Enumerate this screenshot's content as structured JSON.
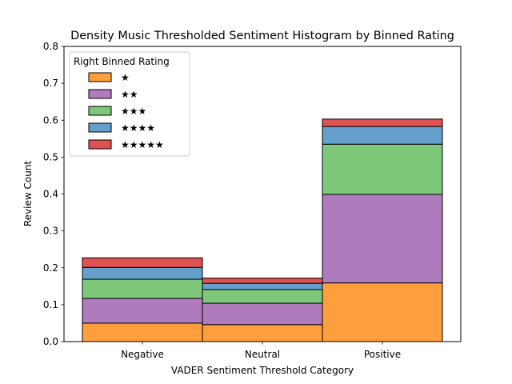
{
  "chart_data": {
    "type": "bar",
    "stacked": true,
    "title": "Density Music Thresholded Sentiment Histogram by Binned Rating",
    "xlabel": "VADER Sentiment Threshold Category",
    "ylabel": "Review Count",
    "ylim": [
      0,
      0.8
    ],
    "yticks": [
      "0.0",
      "0.1",
      "0.2",
      "0.3",
      "0.4",
      "0.5",
      "0.6",
      "0.7",
      "0.8"
    ],
    "categories": [
      "Negative",
      "Neutral",
      "Positive"
    ],
    "legend": {
      "title": "Right Binned Rating",
      "placement": "top-left"
    },
    "grid": false,
    "series": [
      {
        "name": "★",
        "color": "#ff9e3d",
        "values": [
          0.05,
          0.046,
          0.159
        ]
      },
      {
        "name": "★★",
        "color": "#b07bbd",
        "values": [
          0.067,
          0.058,
          0.24
        ]
      },
      {
        "name": "★★★",
        "color": "#7ec87a",
        "values": [
          0.052,
          0.037,
          0.136
        ]
      },
      {
        "name": "★★★★",
        "color": "#659fcb",
        "values": [
          0.032,
          0.017,
          0.048
        ]
      },
      {
        "name": "★★★★★",
        "color": "#e05252",
        "values": [
          0.026,
          0.014,
          0.02
        ]
      }
    ]
  }
}
